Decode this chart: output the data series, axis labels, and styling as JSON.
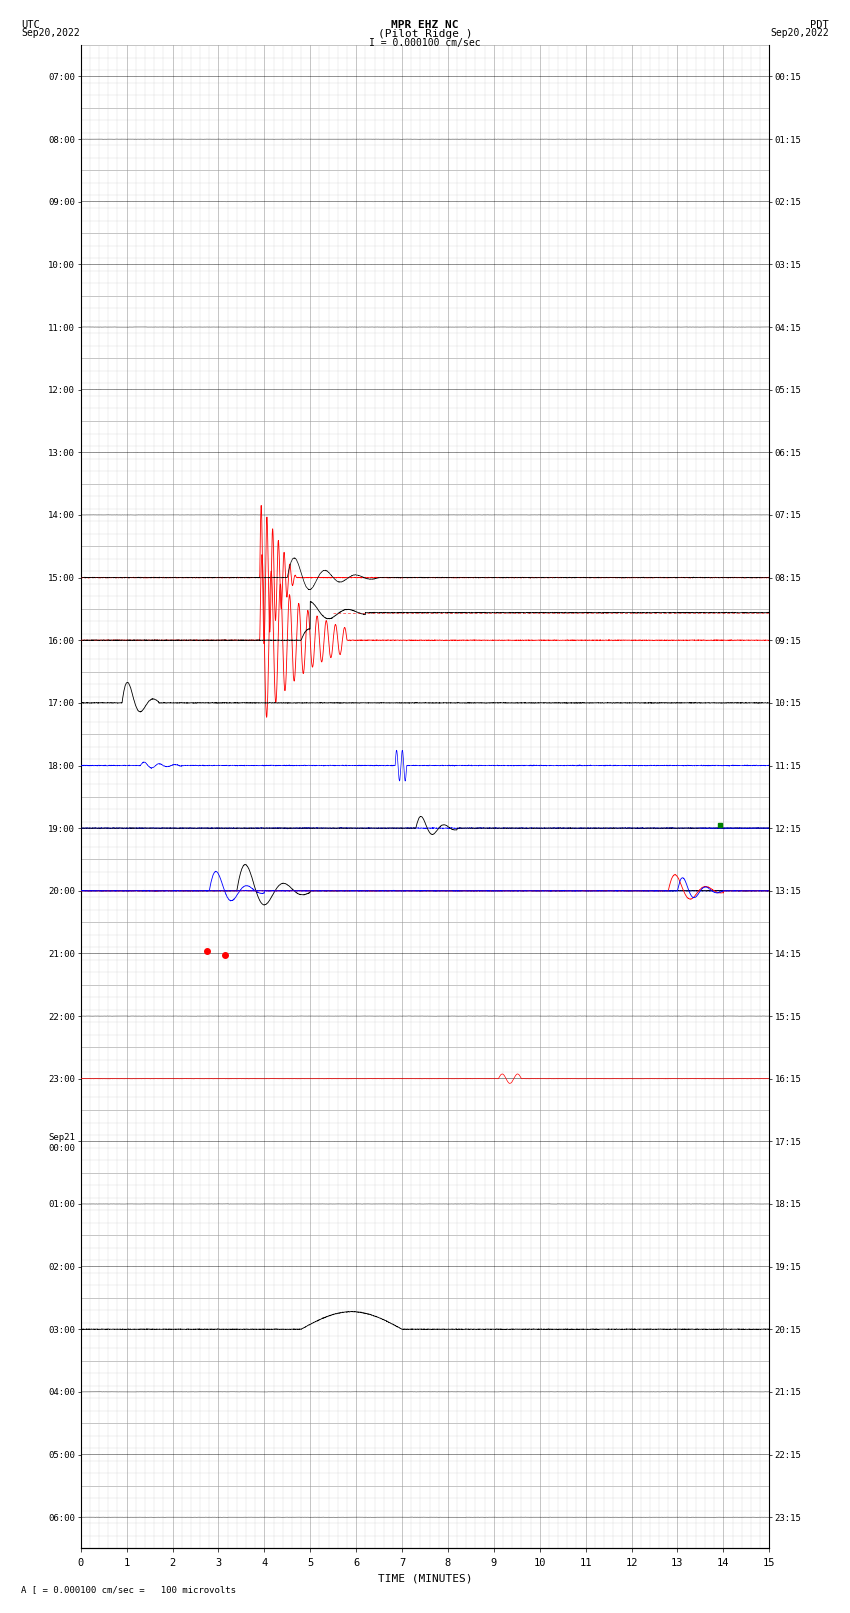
{
  "title_line1": "MPR EHZ NC",
  "title_line2": "(Pilot Ridge )",
  "scale_label": "I = 0.000100 cm/sec",
  "footer_label": "A [ = 0.000100 cm/sec =   100 microvolts",
  "xlabel": "TIME (MINUTES)",
  "bg_color": "#ffffff",
  "grid_major_color": "#999999",
  "grid_minor_color": "#cccccc",
  "utc_times": [
    "07:00",
    "08:00",
    "09:00",
    "10:00",
    "11:00",
    "12:00",
    "13:00",
    "14:00",
    "15:00",
    "16:00",
    "17:00",
    "18:00",
    "19:00",
    "20:00",
    "21:00",
    "22:00",
    "23:00",
    "Sep21\n00:00",
    "01:00",
    "02:00",
    "03:00",
    "04:00",
    "05:00",
    "06:00"
  ],
  "pdt_times": [
    "00:15",
    "01:15",
    "02:15",
    "03:15",
    "04:15",
    "05:15",
    "06:15",
    "07:15",
    "08:15",
    "09:15",
    "10:15",
    "11:15",
    "12:15",
    "13:15",
    "14:15",
    "15:15",
    "16:15",
    "17:15",
    "18:15",
    "19:15",
    "20:15",
    "21:15",
    "22:15",
    "23:15"
  ],
  "n_rows": 24,
  "x_min": 0,
  "x_max": 15,
  "x_ticks": [
    0,
    1,
    2,
    3,
    4,
    5,
    6,
    7,
    8,
    9,
    10,
    11,
    12,
    13,
    14,
    15
  ]
}
